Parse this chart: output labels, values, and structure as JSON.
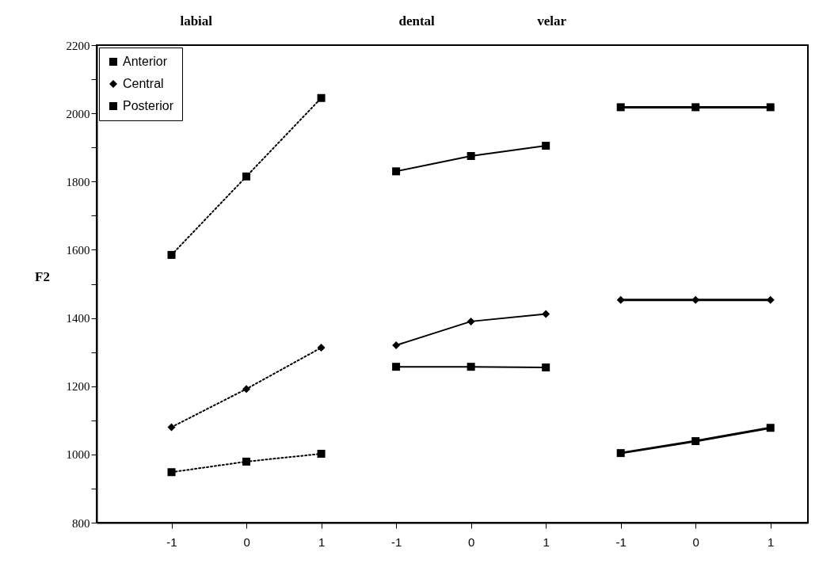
{
  "chart_data": {
    "type": "line",
    "ylabel": "F2",
    "annotations": [
      "labial",
      "dental",
      "velar"
    ],
    "categories": [
      "-1",
      "0",
      "1",
      "-1",
      "0",
      "1",
      "-1",
      "0",
      "1"
    ],
    "ylim": [
      800,
      2200
    ],
    "yticks": [
      800,
      {
        "value": 900,
        "label": null
      },
      1000,
      {
        "value": 1100,
        "label": null
      },
      1200,
      {
        "value": 1300,
        "label": null
      },
      1400,
      {
        "value": 1500,
        "label": null
      },
      1600,
      {
        "value": 1700,
        "label": null
      },
      1800,
      {
        "value": 1900,
        "label": null
      },
      2000,
      {
        "value": 2100,
        "label": null
      },
      2200
    ],
    "grid": false,
    "legend": "top left",
    "series": [
      {
        "name": "Anterior",
        "color": "#000000",
        "marker": "square",
        "line_style": "dotted",
        "values": [
          1585,
          1815,
          2045,
          null,
          null,
          null,
          null,
          null,
          null
        ]
      },
      {
        "name": "Central",
        "color": "#000000",
        "marker": "diamond",
        "line_style": "dotted",
        "values": [
          1080,
          1192,
          1313,
          null,
          null,
          null,
          null,
          null,
          null
        ]
      },
      {
        "name": "Posterior",
        "color": "#000000",
        "marker": "square",
        "line_style": "dotted",
        "values": [
          948,
          979,
          1002,
          null,
          null,
          null,
          null,
          null,
          null
        ]
      },
      {
        "color": "#000000",
        "marker": "square",
        "line_style": "solid",
        "values": [
          null,
          null,
          null,
          1830,
          1875,
          1905,
          null,
          null,
          null
        ]
      },
      {
        "color": "#000000",
        "marker": "diamond",
        "line_style": "solid",
        "values": [
          null,
          null,
          null,
          1320,
          1390,
          1412,
          null,
          null,
          null
        ]
      },
      {
        "color": "#000000",
        "marker": "square",
        "line_style": "solid",
        "values": [
          null,
          null,
          null,
          1257,
          1257,
          1255,
          null,
          null,
          null
        ]
      },
      {
        "color": "#000000",
        "marker": "square",
        "line_style": "solid",
        "values": [
          null,
          null,
          null,
          null,
          null,
          null,
          2018,
          2018,
          2018
        ]
      },
      {
        "color": "#000000",
        "marker": "diamond",
        "line_style": "solid",
        "values": [
          null,
          null,
          null,
          null,
          null,
          null,
          1453,
          1453,
          1453
        ]
      },
      {
        "color": "#000000",
        "marker": "square",
        "line_style": "solid",
        "values": [
          null,
          null,
          null,
          null,
          null,
          null,
          1004,
          1039,
          1078
        ]
      }
    ]
  }
}
